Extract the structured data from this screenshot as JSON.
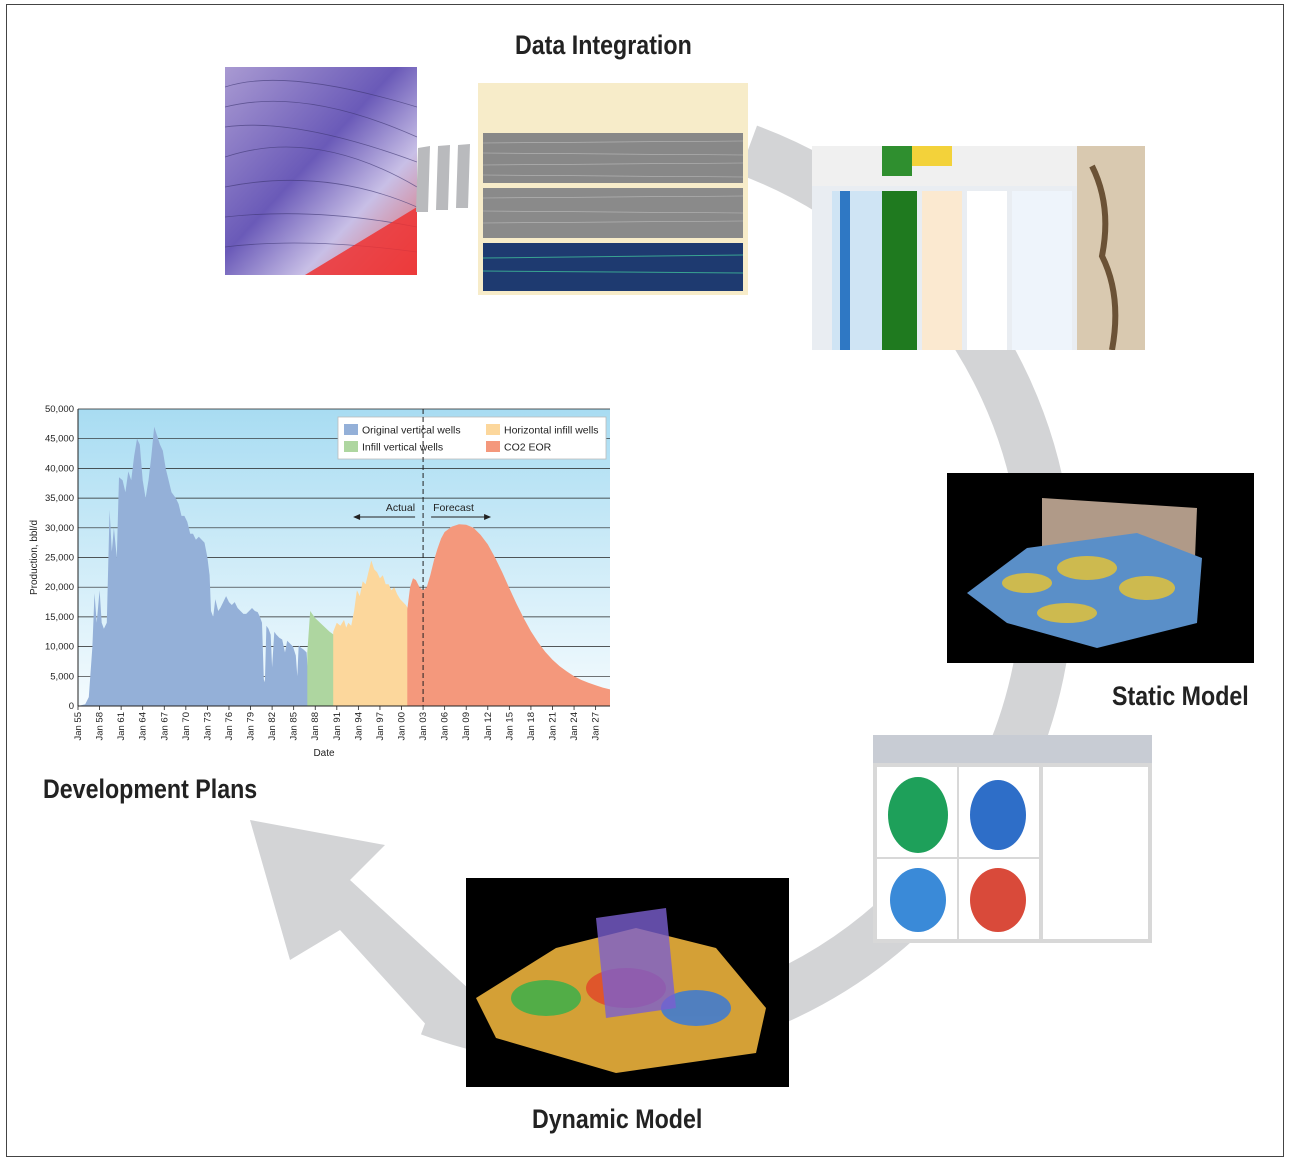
{
  "stages": {
    "data_integration": "Data Integration",
    "static_model": "Static Model",
    "dynamic_model": "Dynamic Model",
    "development_plans": "Development Plans"
  },
  "chart_data": {
    "type": "area",
    "title": "",
    "xlabel": "Date",
    "ylabel": "Production, bbl/d",
    "ylim": [
      0,
      50000
    ],
    "yticks": [
      0,
      5000,
      10000,
      15000,
      20000,
      25000,
      30000,
      35000,
      40000,
      45000,
      50000
    ],
    "yticklabels": [
      "0",
      "5,000",
      "10,000",
      "15,000",
      "20,000",
      "25,000",
      "30,000",
      "35,000",
      "40,000",
      "45,000",
      "50,000"
    ],
    "xlim": [
      1955,
      2029
    ],
    "xticklabels": [
      "Jan 55",
      "Jan 58",
      "Jan 61",
      "Jan 64",
      "Jan 67",
      "Jan 70",
      "Jan 73",
      "Jan 76",
      "Jan 79",
      "Jan 82",
      "Jan 85",
      "Jan 88",
      "Jan 91",
      "Jan 94",
      "Jan 97",
      "Jan 00",
      "Jan 03",
      "Jan 06",
      "Jan 09",
      "Jan 12",
      "Jan 15",
      "Jan 18",
      "Jan 21",
      "Jan 24",
      "Jan 27"
    ],
    "xtickyears": [
      1955,
      1958,
      1961,
      1964,
      1967,
      1970,
      1973,
      1976,
      1979,
      1982,
      1985,
      1988,
      1991,
      1994,
      1997,
      2000,
      2003,
      2006,
      2009,
      2012,
      2015,
      2018,
      2021,
      2024,
      2027
    ],
    "legend_placement": "top-right",
    "divider_year": 2003,
    "annotations": {
      "actual": "Actual",
      "forecast": "Forecast"
    },
    "series": [
      {
        "name": "Original vertical wells",
        "color": "#94b0d8",
        "points": [
          [
            1955,
            0
          ],
          [
            1956,
            300
          ],
          [
            1956.5,
            1500
          ],
          [
            1957,
            10000
          ],
          [
            1957.3,
            19000
          ],
          [
            1957.6,
            14000
          ],
          [
            1958,
            19500
          ],
          [
            1958.3,
            14000
          ],
          [
            1958.6,
            13000
          ],
          [
            1959,
            14000
          ],
          [
            1959.4,
            33000
          ],
          [
            1959.7,
            26000
          ],
          [
            1960,
            30000
          ],
          [
            1960.4,
            25000
          ],
          [
            1960.7,
            38500
          ],
          [
            1961.2,
            38000
          ],
          [
            1961.6,
            36000
          ],
          [
            1962,
            39500
          ],
          [
            1962.4,
            38000
          ],
          [
            1962.8,
            42000
          ],
          [
            1963.2,
            45000
          ],
          [
            1963.6,
            44000
          ],
          [
            1964,
            38000
          ],
          [
            1964.4,
            35000
          ],
          [
            1964.8,
            38000
          ],
          [
            1965.2,
            42000
          ],
          [
            1965.6,
            47000
          ],
          [
            1966,
            45500
          ],
          [
            1966.4,
            44000
          ],
          [
            1966.8,
            43000
          ],
          [
            1967.2,
            40000
          ],
          [
            1967.6,
            38000
          ],
          [
            1968,
            36000
          ],
          [
            1968.6,
            35000
          ],
          [
            1969,
            34000
          ],
          [
            1969.4,
            32000
          ],
          [
            1969.8,
            32000
          ],
          [
            1970.2,
            31000
          ],
          [
            1970.6,
            29000
          ],
          [
            1971,
            29000
          ],
          [
            1971.4,
            28000
          ],
          [
            1971.8,
            28500
          ],
          [
            1972.2,
            28000
          ],
          [
            1972.6,
            27500
          ],
          [
            1973,
            25000
          ],
          [
            1973.3,
            22000
          ],
          [
            1973.5,
            16000
          ],
          [
            1973.8,
            15000
          ],
          [
            1974.1,
            18000
          ],
          [
            1974.5,
            16000
          ],
          [
            1974.8,
            16500
          ],
          [
            1975.2,
            17500
          ],
          [
            1975.6,
            18500
          ],
          [
            1976,
            17500
          ],
          [
            1976.4,
            17000
          ],
          [
            1976.8,
            17500
          ],
          [
            1977.2,
            16500
          ],
          [
            1977.6,
            16000
          ],
          [
            1978,
            15500
          ],
          [
            1978.4,
            15500
          ],
          [
            1978.8,
            16000
          ],
          [
            1979.2,
            16500
          ],
          [
            1979.6,
            16000
          ],
          [
            1980,
            15800
          ],
          [
            1980.3,
            15000
          ],
          [
            1980.6,
            14000
          ],
          [
            1980.85,
            4500
          ],
          [
            1981,
            4000
          ],
          [
            1981.2,
            13500
          ],
          [
            1981.5,
            13000
          ],
          [
            1981.8,
            12000
          ],
          [
            1982,
            6500
          ],
          [
            1982.3,
            12500
          ],
          [
            1982.6,
            12000
          ],
          [
            1983,
            11500
          ],
          [
            1983.4,
            11200
          ],
          [
            1983.8,
            9000
          ],
          [
            1984.1,
            11000
          ],
          [
            1984.5,
            10500
          ],
          [
            1984.9,
            10000
          ],
          [
            1985.3,
            8500
          ],
          [
            1985.5,
            5000
          ],
          [
            1985.7,
            10200
          ],
          [
            1986,
            9800
          ],
          [
            1986.4,
            9500
          ],
          [
            1986.8,
            9000
          ],
          [
            1987,
            5200
          ],
          [
            1987.2,
            8800
          ],
          [
            1988,
            8300
          ],
          [
            1990,
            7400
          ],
          [
            1992,
            6600
          ],
          [
            1994,
            5900
          ],
          [
            1996,
            5200
          ],
          [
            1998,
            4600
          ],
          [
            2000,
            4000
          ],
          [
            2002,
            3500
          ],
          [
            2004,
            3000
          ],
          [
            2006,
            2600
          ],
          [
            2008,
            2200
          ],
          [
            2010,
            1900
          ],
          [
            2012,
            1600
          ],
          [
            2014,
            1350
          ],
          [
            2016,
            1150
          ],
          [
            2018,
            950
          ],
          [
            2020,
            800
          ],
          [
            2022,
            680
          ],
          [
            2024,
            570
          ],
          [
            2026,
            480
          ],
          [
            2029,
            400
          ]
        ]
      },
      {
        "name": "Infill vertical wells",
        "color": "#aed6a0",
        "points": [
          [
            1986.9,
            9000
          ],
          [
            1987.3,
            16000
          ],
          [
            1988,
            14800
          ],
          [
            1990,
            12500
          ],
          [
            1992,
            10800
          ],
          [
            1994,
            9400
          ],
          [
            1996,
            8200
          ],
          [
            1998,
            7200
          ],
          [
            2000,
            6300
          ],
          [
            2002,
            5500
          ],
          [
            2004,
            4800
          ],
          [
            2006,
            4200
          ],
          [
            2008,
            3600
          ],
          [
            2010,
            3100
          ],
          [
            2012,
            2650
          ],
          [
            2014,
            2250
          ],
          [
            2016,
            1900
          ],
          [
            2018,
            1600
          ],
          [
            2020,
            1380
          ],
          [
            2022,
            1200
          ],
          [
            2024,
            1050
          ],
          [
            2026,
            930
          ],
          [
            2029,
            800
          ]
        ]
      },
      {
        "name": "Horizontal infill wells",
        "color": "#fcd79c",
        "points": [
          [
            1990.5,
            12500
          ],
          [
            1991,
            14000
          ],
          [
            1991.5,
            13500
          ],
          [
            1992,
            14500
          ],
          [
            1992.3,
            13200
          ],
          [
            1992.6,
            14000
          ],
          [
            1993,
            13500
          ],
          [
            1993.4,
            16000
          ],
          [
            1993.8,
            19500
          ],
          [
            1994.2,
            18500
          ],
          [
            1994.6,
            21000
          ],
          [
            1995,
            20500
          ],
          [
            1995.4,
            22500
          ],
          [
            1995.8,
            24500
          ],
          [
            1996.2,
            23000
          ],
          [
            1996.6,
            22500
          ],
          [
            1997,
            21500
          ],
          [
            1997.4,
            22000
          ],
          [
            1997.8,
            20500
          ],
          [
            1998.2,
            20500
          ],
          [
            1998.6,
            19500
          ],
          [
            1999,
            20000
          ],
          [
            1999.4,
            18800
          ],
          [
            1999.8,
            18000
          ],
          [
            2000.2,
            17500
          ],
          [
            2000.6,
            17000
          ],
          [
            2001,
            16200
          ],
          [
            2002,
            15000
          ],
          [
            2003,
            14200
          ],
          [
            2004,
            13000
          ],
          [
            2006,
            11300
          ],
          [
            2008,
            9700
          ],
          [
            2010,
            8200
          ],
          [
            2012,
            7000
          ],
          [
            2014,
            5900
          ],
          [
            2016,
            5000
          ],
          [
            2018,
            4250
          ],
          [
            2020,
            3650
          ],
          [
            2022,
            3200
          ],
          [
            2024,
            2800
          ],
          [
            2026,
            2400
          ],
          [
            2029,
            2000
          ]
        ]
      },
      {
        "name": "CO2 EOR",
        "color": "#f4987c",
        "points": [
          [
            2000.8,
            16300
          ],
          [
            2001.2,
            20000
          ],
          [
            2001.6,
            21500
          ],
          [
            2002,
            21200
          ],
          [
            2002.5,
            20000
          ],
          [
            2003,
            19500
          ],
          [
            2003.5,
            20000
          ],
          [
            2004,
            22000
          ],
          [
            2004.5,
            24500
          ],
          [
            2005,
            26500
          ],
          [
            2005.5,
            28200
          ],
          [
            2006,
            29300
          ],
          [
            2007,
            30200
          ],
          [
            2008,
            30600
          ],
          [
            2009,
            30500
          ],
          [
            2010,
            30000
          ],
          [
            2011,
            28800
          ],
          [
            2012,
            27200
          ],
          [
            2013,
            25000
          ],
          [
            2014,
            22500
          ],
          [
            2015,
            19800
          ],
          [
            2016,
            17200
          ],
          [
            2017,
            14800
          ],
          [
            2018,
            12600
          ],
          [
            2019,
            10700
          ],
          [
            2020,
            9100
          ],
          [
            2021,
            7800
          ],
          [
            2022,
            6700
          ],
          [
            2023,
            5800
          ],
          [
            2024,
            5000
          ],
          [
            2025,
            4400
          ],
          [
            2026,
            3900
          ],
          [
            2027,
            3500
          ],
          [
            2028,
            3100
          ],
          [
            2029,
            2800
          ]
        ]
      }
    ]
  }
}
